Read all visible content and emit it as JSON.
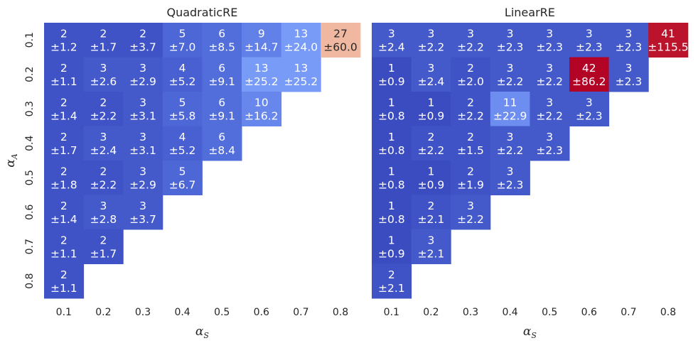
{
  "chart_data": [
    {
      "type": "heatmap",
      "title": "QuadraticRE",
      "xlabel": "α",
      "xlabel_sub": "S",
      "ylabel": "α",
      "ylabel_sub": "A",
      "x_ticks": [
        "0.1",
        "0.2",
        "0.3",
        "0.4",
        "0.5",
        "0.6",
        "0.7",
        "0.8"
      ],
      "y_ticks": [
        "0.1",
        "0.2",
        "0.3",
        "0.4",
        "0.5",
        "0.6",
        "0.7",
        "0.8"
      ],
      "colormap": "coolwarm",
      "color_range": [
        1,
        42
      ],
      "rows": [
        [
          [
            "2",
            "±1.2"
          ],
          [
            "2",
            "±1.7"
          ],
          [
            "2",
            "±3.7"
          ],
          [
            "5",
            "±7.0"
          ],
          [
            "6",
            "±8.5"
          ],
          [
            "9",
            "±14.7"
          ],
          [
            "13",
            "±24.0"
          ],
          [
            "27",
            "±60.0"
          ]
        ],
        [
          [
            "2",
            "±1.1"
          ],
          [
            "3",
            "±2.6"
          ],
          [
            "3",
            "±2.9"
          ],
          [
            "4",
            "±5.2"
          ],
          [
            "6",
            "±9.1"
          ],
          [
            "13",
            "±25.2"
          ],
          [
            "13",
            "±25.2"
          ]
        ],
        [
          [
            "2",
            "±1.4"
          ],
          [
            "2",
            "±2.2"
          ],
          [
            "3",
            "±3.1"
          ],
          [
            "5",
            "±5.8"
          ],
          [
            "6",
            "±9.1"
          ],
          [
            "10",
            "±16.2"
          ]
        ],
        [
          [
            "2",
            "±1.7"
          ],
          [
            "3",
            "±2.4"
          ],
          [
            "3",
            "±3.1"
          ],
          [
            "4",
            "±5.2"
          ],
          [
            "6",
            "±8.4"
          ]
        ],
        [
          [
            "2",
            "±1.8"
          ],
          [
            "2",
            "±2.2"
          ],
          [
            "3",
            "±2.9"
          ],
          [
            "5",
            "±6.7"
          ]
        ],
        [
          [
            "2",
            "±1.4"
          ],
          [
            "3",
            "±2.8"
          ],
          [
            "3",
            "±3.7"
          ]
        ],
        [
          [
            "2",
            "±1.1"
          ],
          [
            "2",
            "±1.7"
          ]
        ],
        [
          [
            "2",
            "±1.1"
          ]
        ]
      ]
    },
    {
      "type": "heatmap",
      "title": "LinearRE",
      "xlabel": "α",
      "xlabel_sub": "S",
      "ylabel": "",
      "ylabel_sub": "",
      "x_ticks": [
        "0.1",
        "0.2",
        "0.3",
        "0.4",
        "0.5",
        "0.6",
        "0.7",
        "0.8"
      ],
      "y_ticks": [],
      "colormap": "coolwarm",
      "color_range": [
        1,
        42
      ],
      "rows": [
        [
          [
            "3",
            "±2.4"
          ],
          [
            "3",
            "±2.2"
          ],
          [
            "3",
            "±2.2"
          ],
          [
            "3",
            "±2.3"
          ],
          [
            "3",
            "±2.3"
          ],
          [
            "3",
            "±2.3"
          ],
          [
            "3",
            "±2.3"
          ],
          [
            "41",
            "±115.5"
          ]
        ],
        [
          [
            "1",
            "±0.9"
          ],
          [
            "3",
            "±2.4"
          ],
          [
            "2",
            "±2.0"
          ],
          [
            "3",
            "±2.2"
          ],
          [
            "3",
            "±2.2"
          ],
          [
            "42",
            "±86.2"
          ],
          [
            "3",
            "±2.3"
          ]
        ],
        [
          [
            "1",
            "±0.8"
          ],
          [
            "1",
            "±0.9"
          ],
          [
            "2",
            "±2.2"
          ],
          [
            "11",
            "±22.9"
          ],
          [
            "3",
            "±2.2"
          ],
          [
            "3",
            "±2.3"
          ]
        ],
        [
          [
            "1",
            "±0.8"
          ],
          [
            "2",
            "±2.2"
          ],
          [
            "2",
            "±1.5"
          ],
          [
            "3",
            "±2.2"
          ],
          [
            "3",
            "±2.3"
          ]
        ],
        [
          [
            "1",
            "±0.8"
          ],
          [
            "1",
            "±0.9"
          ],
          [
            "2",
            "±1.9"
          ],
          [
            "3",
            "±2.3"
          ]
        ],
        [
          [
            "1",
            "±0.8"
          ],
          [
            "2",
            "±2.1"
          ],
          [
            "3",
            "±2.2"
          ]
        ],
        [
          [
            "1",
            "±0.9"
          ],
          [
            "3",
            "±2.1"
          ]
        ],
        [
          [
            "2",
            "±2.1"
          ]
        ]
      ]
    }
  ]
}
